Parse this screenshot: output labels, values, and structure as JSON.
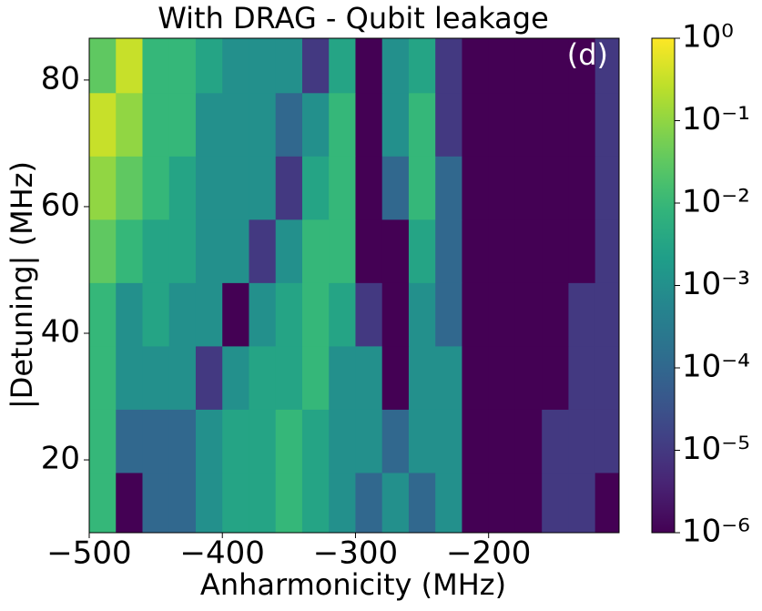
{
  "chart_data": {
    "type": "heatmap",
    "title": "With DRAG -  Qubit leakage",
    "annotation": "(d)",
    "x_label": "Anharmonicity (MHz)",
    "y_label": "|Detuning| (MHz)",
    "xlim": [
      -500,
      -102
    ],
    "ylim": [
      8.5,
      86.6
    ],
    "xticks": [
      {
        "value": -500,
        "label": "−500"
      },
      {
        "value": -400,
        "label": "−400"
      },
      {
        "value": -300,
        "label": "−300"
      },
      {
        "value": -200,
        "label": "−200"
      }
    ],
    "yticks": [
      20,
      40,
      60,
      80
    ],
    "x_bins": [
      -500,
      -480,
      -460,
      -440,
      -420,
      -400,
      -380,
      -360,
      -340,
      -320,
      -300,
      -280,
      -260,
      -240,
      -220,
      -200,
      -180,
      -160,
      -140,
      -120,
      -102
    ],
    "y_bins": [
      8.5,
      18,
      28,
      38,
      48,
      58,
      68,
      78,
      86.6
    ],
    "colormap": "viridis",
    "log_scale": true,
    "clim": [
      1e-06,
      1
    ],
    "cticks": [
      {
        "value": 1e-06,
        "label": "10⁻⁶"
      },
      {
        "value": 1e-05,
        "label": "10⁻⁵"
      },
      {
        "value": 0.0001,
        "label": "10⁻⁴"
      },
      {
        "value": 0.001,
        "label": "10⁻³"
      },
      {
        "value": 0.01,
        "label": "10⁻²"
      },
      {
        "value": 0.1,
        "label": "10⁻¹"
      },
      {
        "value": 1,
        "label": "10⁰"
      }
    ],
    "values": [
      [
        0.01,
        1e-06,
        0.0001,
        0.0001,
        0.001,
        0.0032,
        0.0032,
        0.01,
        0.0032,
        0.001,
        0.0001,
        0.001,
        0.0001,
        0.001,
        1e-06,
        1e-06,
        1e-06,
        1e-05,
        1e-05,
        1e-06
      ],
      [
        0.01,
        0.0001,
        0.0001,
        0.0001,
        0.001,
        0.0032,
        0.0032,
        0.01,
        0.0032,
        0.001,
        0.001,
        0.0001,
        0.001,
        0.001,
        1e-06,
        1e-06,
        1e-06,
        1e-05,
        1e-05,
        1e-05
      ],
      [
        0.01,
        0.001,
        0.001,
        0.001,
        1e-05,
        0.001,
        0.0032,
        0.0032,
        0.01,
        0.001,
        0.001,
        1e-06,
        0.001,
        0.001,
        1e-06,
        1e-06,
        1e-06,
        1e-06,
        1e-05,
        1e-05
      ],
      [
        0.01,
        0.001,
        0.0032,
        0.001,
        0.001,
        1e-06,
        0.001,
        0.0032,
        0.01,
        0.0032,
        1e-05,
        1e-06,
        0.001,
        0.0001,
        1e-06,
        1e-06,
        1e-06,
        1e-06,
        1e-05,
        1e-05
      ],
      [
        0.032,
        0.01,
        0.0032,
        0.0032,
        0.001,
        0.001,
        1e-05,
        0.001,
        0.01,
        0.01,
        1e-06,
        1e-06,
        0.0032,
        0.0001,
        1e-06,
        1e-06,
        1e-06,
        1e-06,
        1e-06,
        1e-05
      ],
      [
        0.1,
        0.032,
        0.01,
        0.0032,
        0.001,
        0.001,
        0.001,
        1e-05,
        0.0032,
        0.01,
        1e-06,
        0.0001,
        0.01,
        0.0001,
        1e-06,
        1e-06,
        1e-06,
        1e-06,
        1e-06,
        1e-05
      ],
      [
        0.32,
        0.1,
        0.01,
        0.01,
        0.001,
        0.001,
        0.001,
        0.0001,
        0.001,
        0.01,
        1e-06,
        0.001,
        0.01,
        1e-05,
        1e-06,
        1e-06,
        1e-06,
        1e-06,
        1e-06,
        1e-05
      ],
      [
        0.032,
        0.32,
        0.01,
        0.01,
        0.0032,
        0.001,
        0.001,
        0.001,
        1e-05,
        0.0032,
        1e-06,
        0.001,
        0.0032,
        1e-05,
        1e-06,
        1e-06,
        1e-06,
        1e-06,
        1e-06,
        1e-05
      ]
    ]
  }
}
